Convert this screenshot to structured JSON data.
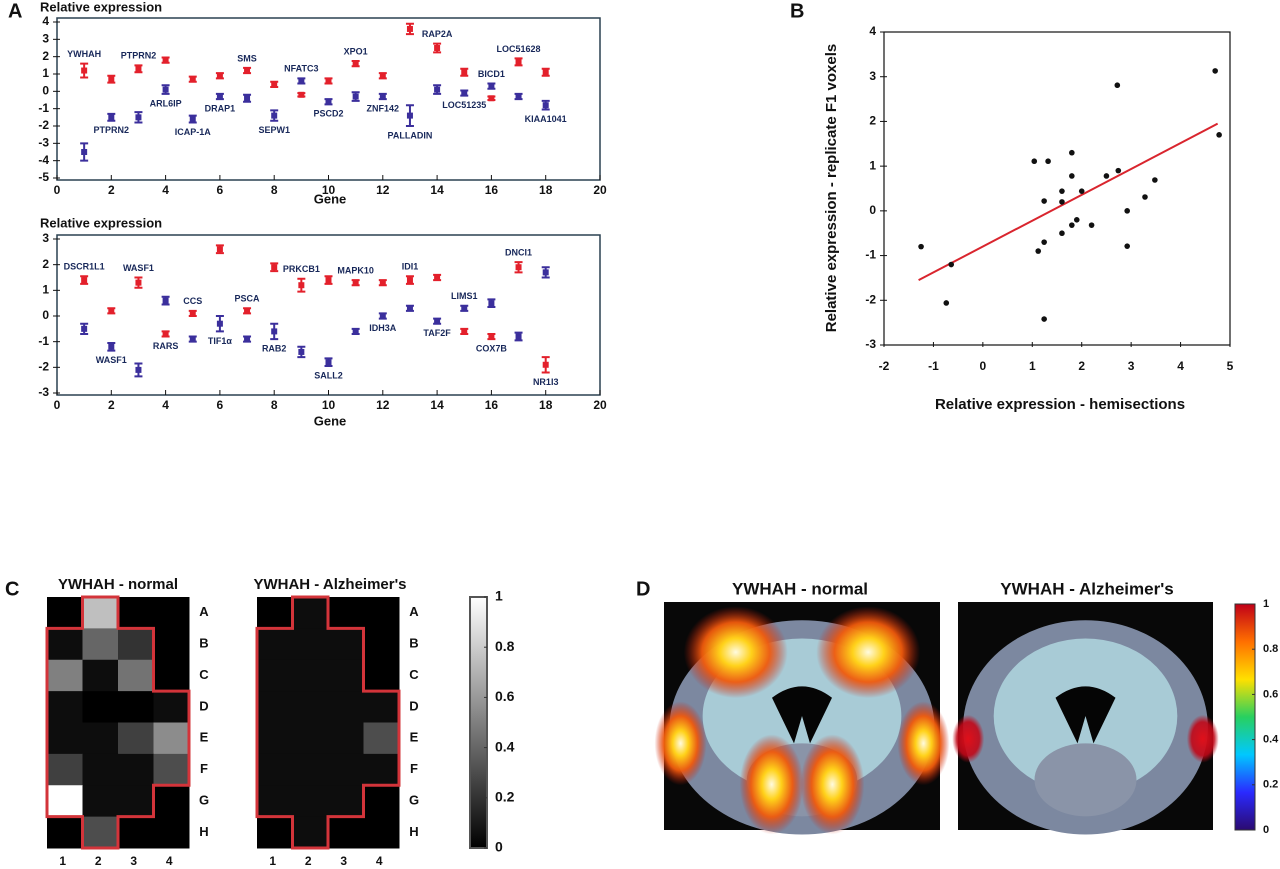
{
  "chart_data": [
    {
      "type": "errorbar",
      "panel_label": "A",
      "title": "Relative expression",
      "xlabel": "Gene",
      "xlim": [
        0,
        20
      ],
      "ylim": [
        -5,
        4
      ],
      "xticks": [
        0,
        2,
        4,
        6,
        8,
        10,
        12,
        14,
        16,
        18,
        20
      ],
      "yticks": [
        -5,
        -4,
        -3,
        -2,
        -1,
        0,
        1,
        2,
        3,
        4
      ],
      "x": [
        1,
        2,
        3,
        4,
        5,
        6,
        7,
        8,
        9,
        10,
        11,
        12,
        13,
        14,
        15,
        16,
        17,
        18
      ],
      "series": [
        {
          "color": "#e3202b",
          "values": [
            1.2,
            0.7,
            1.3,
            1.8,
            0.7,
            0.9,
            1.2,
            0.4,
            -0.2,
            0.6,
            1.6,
            0.9,
            3.6,
            2.5,
            1.1,
            -0.4,
            1.7,
            1.1
          ],
          "errors": [
            0.4,
            0.2,
            0.2,
            0.15,
            0.15,
            0.15,
            0.15,
            0.15,
            0.1,
            0.15,
            0.15,
            0.15,
            0.3,
            0.25,
            0.2,
            0.1,
            0.2,
            0.2
          ],
          "labels": [
            "YWHAH",
            null,
            "PTPRN2",
            null,
            null,
            null,
            "SMS",
            null,
            null,
            null,
            "XPO1",
            null,
            null,
            "RAP2A",
            null,
            null,
            "LOC51628",
            null
          ]
        },
        {
          "color": "#3b2f9c",
          "values": [
            -3.5,
            -1.5,
            -1.5,
            0.1,
            -1.6,
            -0.3,
            -0.4,
            -1.4,
            0.6,
            -0.6,
            -0.3,
            -0.3,
            -1.4,
            0.1,
            -0.1,
            0.3,
            -0.3,
            -0.8
          ],
          "errors": [
            0.5,
            0.2,
            0.3,
            0.25,
            0.2,
            0.15,
            0.2,
            0.3,
            0.15,
            0.15,
            0.25,
            0.15,
            0.6,
            0.25,
            0.15,
            0.15,
            0.15,
            0.25
          ],
          "labels": [
            null,
            "PTPRN2",
            null,
            "ARL6IP",
            "ICAP-1A",
            "DRAP1",
            null,
            "SEPW1",
            "NFATC3",
            "PSCD2",
            null,
            "ZNF142",
            "PALLADIN",
            null,
            "LOC51235",
            "BICD1",
            null,
            "KIAA1041"
          ]
        }
      ]
    },
    {
      "type": "errorbar",
      "title": "Relative expression",
      "xlabel": "Gene",
      "xlim": [
        0,
        20
      ],
      "ylim": [
        -3,
        3
      ],
      "xticks": [
        0,
        2,
        4,
        6,
        8,
        10,
        12,
        14,
        16,
        18,
        20
      ],
      "yticks": [
        -3,
        -2,
        -1,
        0,
        1,
        2,
        3
      ],
      "x": [
        1,
        2,
        3,
        4,
        5,
        6,
        7,
        8,
        9,
        10,
        11,
        12,
        13,
        14,
        15,
        16,
        17,
        18
      ],
      "series": [
        {
          "color": "#e3202b",
          "values": [
            1.4,
            0.2,
            1.3,
            -0.7,
            0.1,
            2.6,
            0.2,
            1.9,
            1.2,
            1.4,
            1.3,
            1.3,
            1.4,
            1.5,
            -0.6,
            -0.8,
            1.9,
            -1.9
          ],
          "errors": [
            0.15,
            0.1,
            0.2,
            0.1,
            0.1,
            0.15,
            0.1,
            0.15,
            0.25,
            0.15,
            0.1,
            0.1,
            0.15,
            0.1,
            0.1,
            0.1,
            0.2,
            0.3
          ],
          "labels": [
            "DSCR1L1",
            null,
            "WASF1",
            "RARS",
            "CCS",
            null,
            "PSCA",
            null,
            "PRKCB1",
            null,
            "MAPK10",
            null,
            "IDI1",
            null,
            null,
            "COX7B",
            "DNCI1",
            "NR1I3"
          ]
        },
        {
          "color": "#3b2f9c",
          "values": [
            -0.5,
            -1.2,
            -2.1,
            0.6,
            -0.9,
            -0.3,
            -0.9,
            -0.6,
            -1.4,
            -1.8,
            -0.6,
            0.0,
            0.3,
            -0.2,
            0.3,
            0.5,
            -0.8,
            1.7
          ],
          "errors": [
            0.2,
            0.15,
            0.25,
            0.15,
            0.1,
            0.3,
            0.1,
            0.3,
            0.2,
            0.15,
            0.1,
            0.1,
            0.1,
            0.1,
            0.1,
            0.15,
            0.15,
            0.2
          ],
          "labels": [
            null,
            "WASF1",
            null,
            null,
            null,
            "TIF1α",
            null,
            "RAB2",
            null,
            "SALL2",
            null,
            "IDH3A",
            null,
            "TAF2F",
            "LIMS1",
            null,
            null,
            null
          ]
        }
      ]
    },
    {
      "type": "scatter",
      "panel_label": "B",
      "xlabel": "Relative expression - hemisections",
      "ylabel": "Relative expression - replicate F1 voxels",
      "xlim": [
        -2,
        5
      ],
      "ylim": [
        -3,
        4
      ],
      "xticks": [
        -2,
        -1,
        0,
        1,
        2,
        3,
        4,
        5
      ],
      "yticks": [
        -3,
        -2,
        -1,
        0,
        1,
        2,
        3,
        4
      ],
      "color": "#111111",
      "x": [
        -1.25,
        -0.64,
        -0.74,
        1.04,
        1.32,
        1.24,
        1.12,
        1.24,
        1.24,
        1.6,
        1.6,
        1.6,
        1.8,
        1.8,
        1.8,
        1.9,
        2.0,
        2.2,
        2.5,
        2.74,
        2.72,
        2.92,
        2.92,
        3.28,
        3.48,
        4.7,
        4.78
      ],
      "y": [
        -0.8,
        -1.2,
        -2.06,
        1.11,
        1.11,
        0.22,
        -0.9,
        -0.7,
        -2.42,
        0.44,
        0.2,
        -0.5,
        0.78,
        1.3,
        -0.32,
        -0.2,
        0.44,
        -0.32,
        0.78,
        0.9,
        2.81,
        0.0,
        -0.79,
        0.31,
        0.69,
        3.13,
        1.7
      ],
      "fit": {
        "color": "#d9252e",
        "x": [
          -1.3,
          4.75
        ],
        "y": [
          -1.55,
          1.95
        ]
      }
    },
    {
      "type": "heatmap",
      "panel_label": "C",
      "title": "YWHAH - normal",
      "colormap": "gray",
      "rows": [
        "A",
        "B",
        "C",
        "D",
        "E",
        "F",
        "G",
        "H"
      ],
      "cols": [
        "1",
        "2",
        "3",
        "4"
      ],
      "values": [
        [
          0,
          0.75,
          0,
          0
        ],
        [
          0.05,
          0.4,
          0.2,
          0
        ],
        [
          0.5,
          0.05,
          0.45,
          0
        ],
        [
          0.05,
          0,
          0,
          0.05
        ],
        [
          0.05,
          0.05,
          0.25,
          0.55
        ],
        [
          0.25,
          0.05,
          0.05,
          0.3
        ],
        [
          1,
          0.05,
          0.05,
          0
        ],
        [
          0,
          0.3,
          0,
          0
        ]
      ]
    },
    {
      "type": "heatmap",
      "title": "YWHAH - Alzheimer's",
      "colormap": "gray",
      "rows": [
        "A",
        "B",
        "C",
        "D",
        "E",
        "F",
        "G",
        "H"
      ],
      "cols": [
        "1",
        "2",
        "3",
        "4"
      ],
      "values": [
        [
          0,
          0.05,
          0,
          0
        ],
        [
          0.05,
          0.05,
          0.05,
          0
        ],
        [
          0.05,
          0.05,
          0.05,
          0
        ],
        [
          0.05,
          0.05,
          0.05,
          0.05
        ],
        [
          0.05,
          0.05,
          0.05,
          0.3
        ],
        [
          0.05,
          0.05,
          0.05,
          0.05
        ],
        [
          0.05,
          0.05,
          0.05,
          0
        ],
        [
          0,
          0.05,
          0,
          0
        ]
      ]
    },
    {
      "type": "colorbar",
      "colormap": "gray",
      "lim": [
        0,
        1
      ],
      "ticks": [
        0,
        0.2,
        0.4,
        0.6,
        0.8,
        1
      ]
    },
    {
      "type": "image",
      "panel_label": "D",
      "title": "YWHAH - normal"
    },
    {
      "type": "image",
      "title": "YWHAH - Alzheimer's"
    },
    {
      "type": "colorbar",
      "colormap": "jet",
      "lim": [
        0,
        1
      ],
      "ticks": [
        0,
        0.2,
        0.4,
        0.6,
        0.8,
        1
      ]
    }
  ]
}
